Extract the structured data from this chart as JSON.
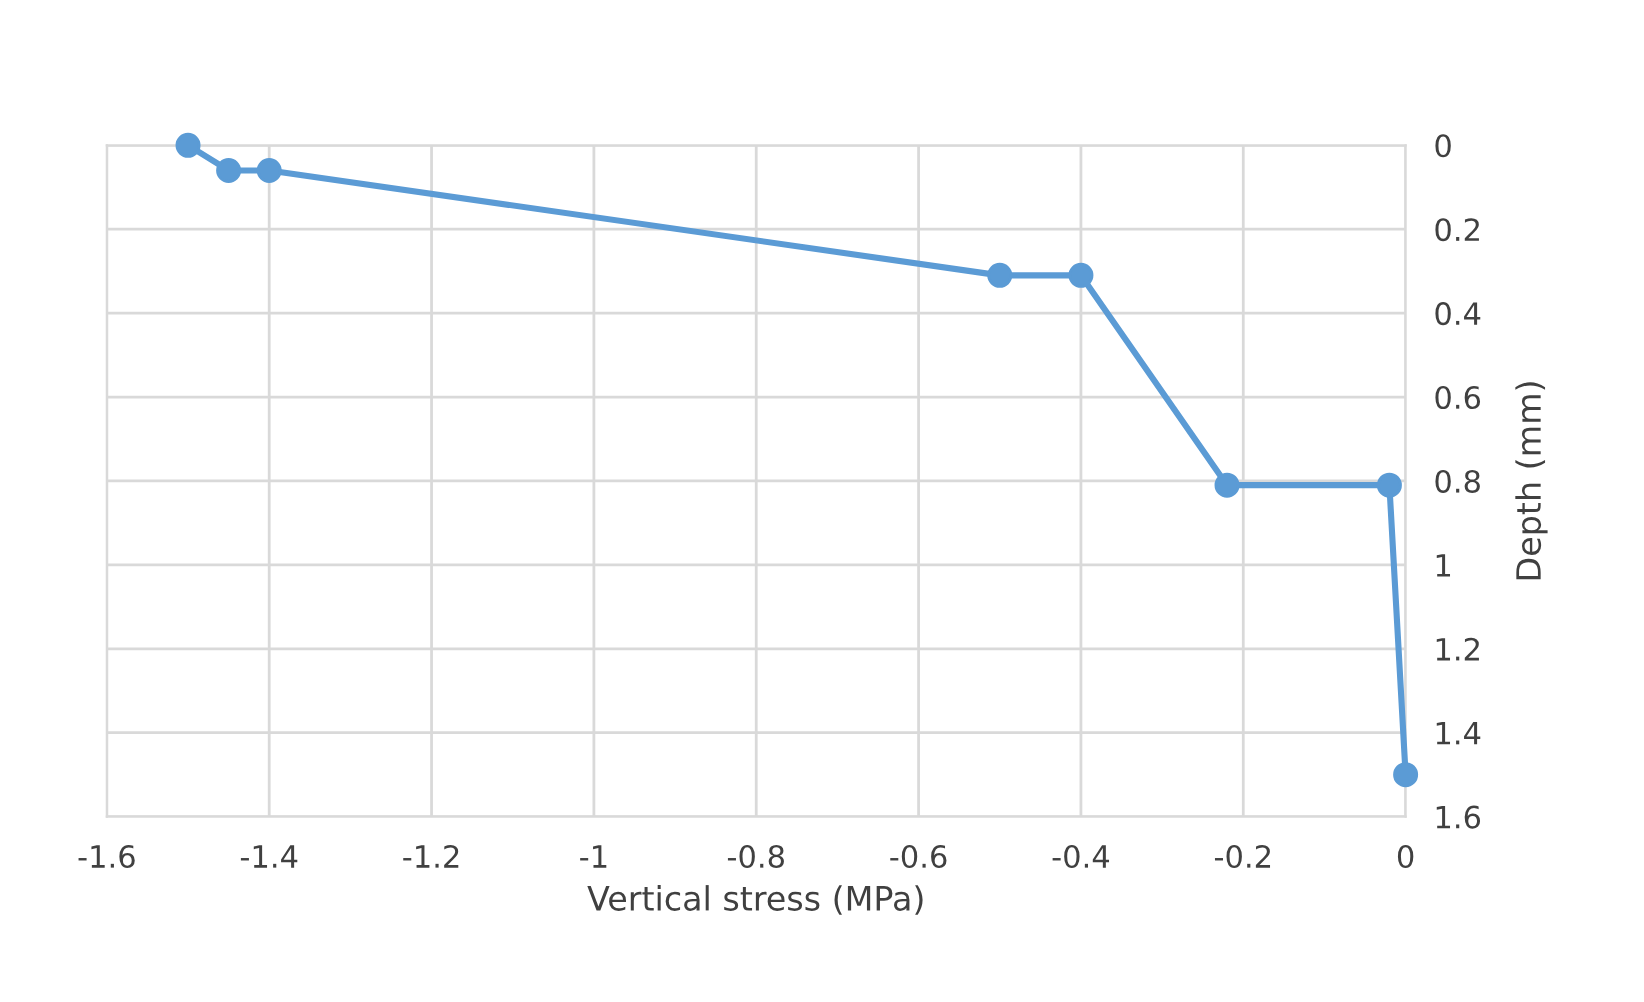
{
  "chart_data": {
    "type": "line",
    "xlabel": "Vertical stress (MPa)",
    "ylabel": "Depth (mm)",
    "x": [
      -1.5,
      -1.45,
      -1.4,
      -0.5,
      -0.4,
      -0.22,
      -0.02,
      0
    ],
    "series": [
      {
        "color": "#5b9bd5",
        "values": [
          0,
          0.06,
          0.06,
          0.31,
          0.31,
          0.81,
          0.81,
          1.5
        ]
      }
    ],
    "xlim": [
      -1.6,
      0
    ],
    "xticks": [
      -1.6,
      -1.4,
      -1.2,
      -1,
      -0.8,
      -0.6,
      -0.4,
      -0.2,
      0
    ],
    "ylim": [
      1.6,
      0
    ],
    "yticks": [
      0,
      0.2,
      0.4,
      0.6,
      0.8,
      1,
      1.2,
      1.4,
      1.6
    ],
    "grid": true,
    "marker": "circle",
    "line_style": "solid",
    "legend": false
  }
}
